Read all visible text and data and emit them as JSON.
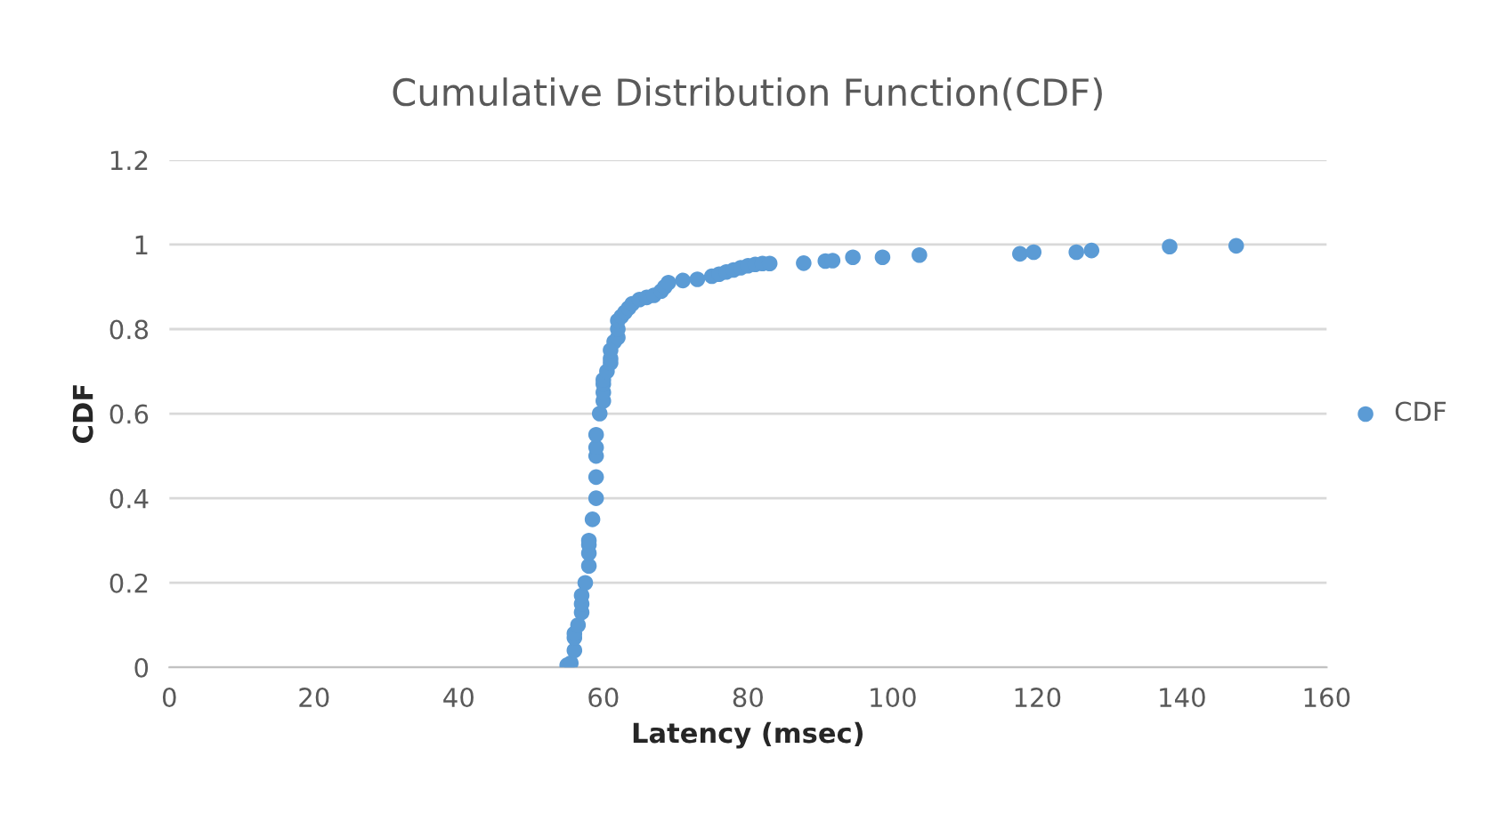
{
  "chart_data": {
    "type": "scatter",
    "title": "Cumulative Distribution Function(CDF)",
    "xlabel": "Latency (msec)",
    "ylabel": "CDF",
    "xlim": [
      0,
      160
    ],
    "xticks": [
      0,
      20,
      40,
      60,
      80,
      100,
      120,
      140,
      160
    ],
    "ylim": [
      0,
      1.2
    ],
    "yticks": [
      0,
      0.2,
      0.4,
      0.6,
      0.8,
      1,
      1.2
    ],
    "grid": "y",
    "legend": "right",
    "marker": "circle",
    "series": [
      {
        "name": "CDF",
        "color": "#5b9bd5",
        "x": [
          55,
          55.5,
          56,
          56,
          56,
          56.5,
          57,
          57,
          57,
          57.5,
          58,
          58,
          58,
          58,
          58.5,
          59,
          59,
          59,
          59,
          59,
          59.5,
          60,
          60,
          60,
          60,
          60.5,
          61,
          61,
          61,
          61.5,
          62,
          62,
          62,
          62.5,
          63,
          63.5,
          64,
          65,
          66,
          67,
          68,
          68.5,
          69,
          71,
          73,
          75,
          76,
          77,
          78,
          79,
          80,
          81,
          82,
          83,
          87.7,
          90.7,
          91.7,
          94.5,
          98.6,
          103.7,
          117.6,
          119.5,
          125.4,
          127.5,
          138.3,
          147.5
        ],
        "values": [
          0.005,
          0.01,
          0.04,
          0.07,
          0.08,
          0.1,
          0.13,
          0.15,
          0.17,
          0.2,
          0.24,
          0.27,
          0.29,
          0.3,
          0.35,
          0.4,
          0.45,
          0.5,
          0.52,
          0.55,
          0.6,
          0.63,
          0.65,
          0.67,
          0.68,
          0.7,
          0.72,
          0.73,
          0.75,
          0.77,
          0.78,
          0.8,
          0.82,
          0.83,
          0.84,
          0.85,
          0.86,
          0.87,
          0.875,
          0.88,
          0.89,
          0.9,
          0.91,
          0.915,
          0.918,
          0.925,
          0.93,
          0.935,
          0.94,
          0.945,
          0.95,
          0.953,
          0.955,
          0.955,
          0.956,
          0.961,
          0.962,
          0.97,
          0.97,
          0.975,
          0.978,
          0.982,
          0.982,
          0.986,
          0.995,
          0.997
        ]
      }
    ]
  }
}
